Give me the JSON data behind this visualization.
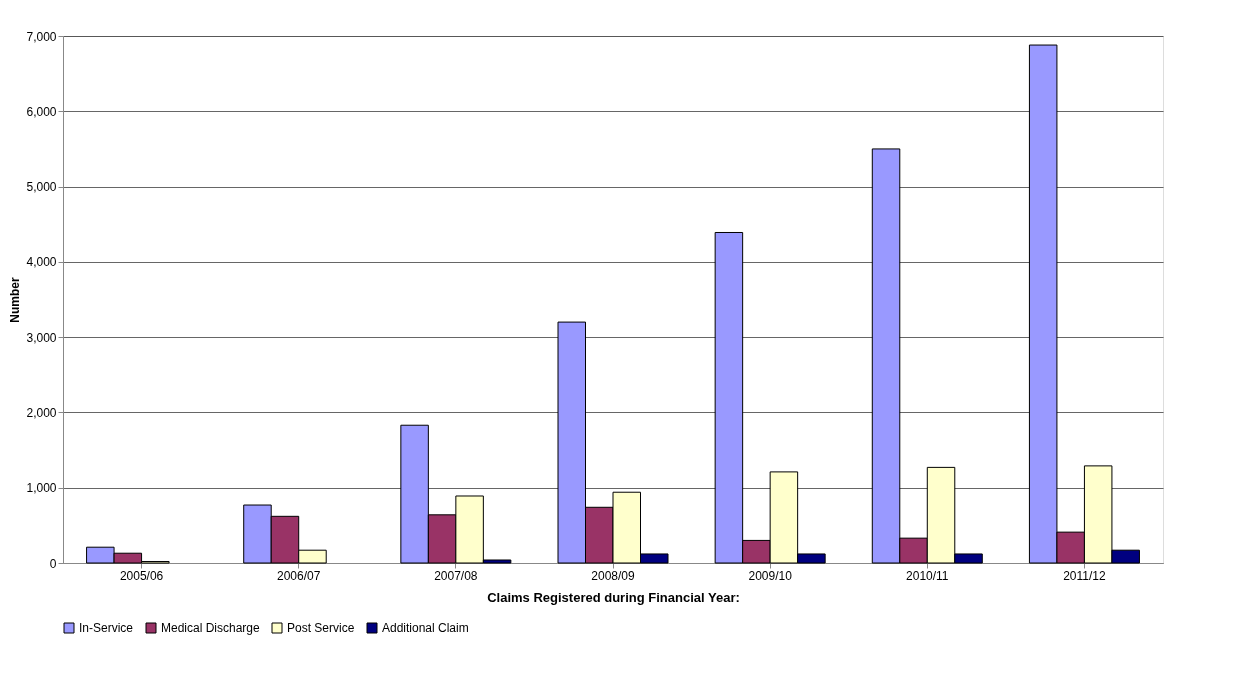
{
  "chart_data": {
    "type": "bar",
    "xlabel": "Claims Registered during Financial Year:",
    "ylabel": "Number",
    "categories": [
      "2005/06",
      "2006/07",
      "2007/08",
      "2008/09",
      "2009/10",
      "2010/11",
      "2011/12"
    ],
    "series": [
      {
        "name": "In-Service",
        "color": "#9999ff",
        "values": [
          210,
          770,
          1830,
          3200,
          4390,
          5500,
          6880
        ]
      },
      {
        "name": "Medical Discharge",
        "color": "#993366",
        "values": [
          130,
          620,
          640,
          740,
          300,
          330,
          410
        ]
      },
      {
        "name": "Post Service",
        "color": "#ffffcc",
        "values": [
          20,
          170,
          890,
          940,
          1210,
          1270,
          1290
        ]
      },
      {
        "name": "Additional Claim",
        "color": "#000080",
        "values": [
          null,
          null,
          40,
          120,
          120,
          120,
          170
        ]
      }
    ],
    "ylim": [
      0,
      7000
    ],
    "yticks": [
      0,
      {
        "value": 1000,
        "label": "1,000"
      },
      {
        "value": 2000,
        "label": "2,000"
      },
      {
        "value": 3000,
        "label": "3,000"
      },
      {
        "value": 4000,
        "label": "4,000"
      },
      {
        "value": 5000,
        "label": "5,000"
      },
      {
        "value": 6000,
        "label": "6,000"
      },
      {
        "value": 7000,
        "label": "7,000"
      }
    ],
    "grid": "y",
    "legend": "bottom"
  }
}
